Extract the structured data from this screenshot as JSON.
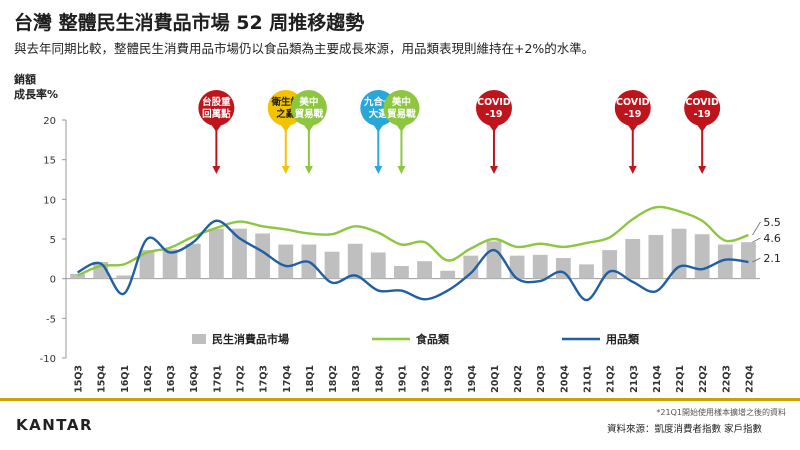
{
  "title": "台灣 整體民生消費品市場 52 周推移趨勢",
  "subtitle": "與去年同期比較，整體民生消費用品市場仍以食品類為主要成長來源，用品類表現則維持在+2%的水準。",
  "footer": {
    "logo": "KANTAR",
    "note": "*21Q1開始使用樣本擴增之後的資料",
    "source": "資料來源：凱度消費者指數  家戶指數"
  },
  "colors": {
    "bar": "#bfbfbf",
    "food": "#8dc63f",
    "goods": "#1f5fa3",
    "event_red": "#c0141c",
    "event_yellow": "#f4c300",
    "event_green": "#8dc63f",
    "event_blue": "#29a8d8",
    "accent_gold": "#c9a400"
  },
  "chart_data": {
    "type": "bar",
    "ylabel": "銷額\n成長率%",
    "ylim": [
      -10,
      20
    ],
    "yticks": [
      -10,
      -5,
      0,
      5,
      10,
      15,
      20
    ],
    "categories": [
      "15Q3",
      "15Q4",
      "16Q1",
      "16Q2",
      "16Q3",
      "16Q4",
      "17Q1",
      "17Q2",
      "17Q3",
      "17Q4",
      "18Q1",
      "18Q2",
      "18Q3",
      "18Q4",
      "19Q1",
      "19Q2",
      "19Q3",
      "19Q4",
      "20Q1",
      "20Q2",
      "20Q3",
      "20Q4",
      "21Q1",
      "21Q2",
      "21Q3",
      "21Q4",
      "22Q1",
      "22Q2",
      "22Q3",
      "22Q4"
    ],
    "series": [
      {
        "name": "民生消費品市場",
        "type": "bar",
        "values": [
          0.6,
          2.1,
          0.4,
          3.6,
          3.7,
          4.4,
          6.3,
          6.3,
          5.7,
          4.3,
          4.3,
          3.4,
          4.4,
          3.3,
          1.6,
          2.2,
          1.0,
          2.9,
          4.7,
          2.9,
          3.0,
          2.6,
          1.8,
          3.6,
          5.0,
          5.5,
          6.3,
          5.6,
          4.3,
          4.6
        ]
      },
      {
        "name": "食品類",
        "type": "line",
        "values": [
          0.4,
          1.6,
          1.8,
          3.3,
          3.9,
          5.3,
          6.4,
          7.2,
          6.6,
          6.2,
          5.7,
          5.6,
          6.6,
          5.8,
          4.3,
          4.6,
          2.3,
          3.8,
          5.0,
          4.0,
          4.4,
          4.0,
          4.5,
          5.2,
          7.5,
          9.0,
          8.5,
          7.3,
          4.8,
          5.5
        ]
      },
      {
        "name": "用品類",
        "type": "line",
        "values": [
          0.8,
          1.9,
          -1.9,
          5.0,
          3.3,
          4.6,
          7.3,
          5.1,
          3.4,
          1.6,
          2.1,
          -0.5,
          0.4,
          -1.5,
          -1.5,
          -2.6,
          -1.5,
          0.7,
          3.6,
          0.0,
          -0.3,
          0.8,
          -2.7,
          0.9,
          -0.4,
          -1.6,
          1.5,
          1.2,
          2.4,
          2.1
        ]
      }
    ],
    "end_labels": [
      {
        "series": "食品類",
        "text": "5.5"
      },
      {
        "series": "民生消費品市場",
        "text": "4.6"
      },
      {
        "series": "用品類",
        "text": "2.1"
      }
    ],
    "annotations": [
      {
        "label": "台股重\n回萬點",
        "category": "17Q1",
        "color": "event_red"
      },
      {
        "label": "衛生紙\n之亂",
        "category": "17Q4",
        "color": "event_yellow"
      },
      {
        "label": "美中\n貿易戰",
        "category": "18Q1",
        "color": "event_green"
      },
      {
        "label": "九合一\n大選",
        "category": "18Q4",
        "color": "event_blue"
      },
      {
        "label": "美中\n貿易戰",
        "category": "19Q1",
        "color": "event_green"
      },
      {
        "label": "COVID\n-19",
        "category": "20Q1",
        "color": "event_red"
      },
      {
        "label": "COVID\n-19",
        "category": "21Q3",
        "color": "event_red"
      },
      {
        "label": "COVID\n-19",
        "category": "22Q2",
        "color": "event_red"
      }
    ],
    "legend": {
      "position": "bottom",
      "grid": false
    }
  }
}
